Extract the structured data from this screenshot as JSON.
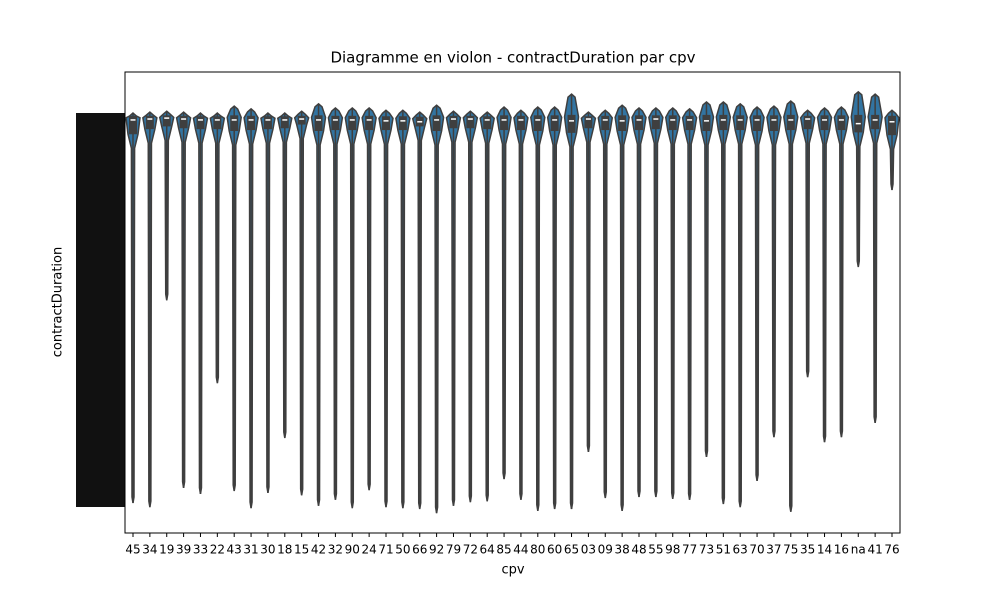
{
  "chart_data": {
    "type": "violin",
    "title": "Diagramme en violon - contractDuration par cpv",
    "x_label": "cpv",
    "y_label": "contractDuration",
    "categories": [
      "45",
      "34",
      "19",
      "39",
      "33",
      "22",
      "43",
      "31",
      "30",
      "18",
      "15",
      "42",
      "32",
      "90",
      "24",
      "71",
      "50",
      "66",
      "92",
      "79",
      "72",
      "64",
      "85",
      "44",
      "80",
      "60",
      "65",
      "03",
      "09",
      "38",
      "48",
      "55",
      "98",
      "77",
      "73",
      "51",
      "63",
      "70",
      "37",
      "75",
      "35",
      "14",
      "16",
      "na",
      "41",
      "76"
    ],
    "max": [
      91.1,
      91.3,
      91.5,
      91.3,
      91.1,
      91.1,
      92.6,
      92.0,
      91.1,
      91.1,
      91.5,
      93.1,
      92.2,
      92.2,
      92.2,
      91.7,
      91.7,
      91.3,
      92.8,
      91.5,
      91.5,
      91.3,
      92.4,
      91.7,
      92.4,
      92.4,
      95.2,
      91.3,
      91.7,
      92.8,
      92.2,
      92.2,
      92.2,
      92.0,
      93.5,
      93.5,
      93.1,
      92.4,
      92.6,
      93.7,
      91.7,
      92.2,
      92.4,
      95.7,
      95.2,
      91.7
    ],
    "q3": [
      90.5,
      90.5,
      90.6,
      90.5,
      90.4,
      90.4,
      90.6,
      90.5,
      90.4,
      90.4,
      90.5,
      90.6,
      90.5,
      90.5,
      90.5,
      90.4,
      90.4,
      90.3,
      90.6,
      90.5,
      90.5,
      90.4,
      90.6,
      90.5,
      90.6,
      90.6,
      90.7,
      90.4,
      90.5,
      90.6,
      90.6,
      90.6,
      90.6,
      90.5,
      90.7,
      90.7,
      90.6,
      90.6,
      90.6,
      90.7,
      90.5,
      90.6,
      90.6,
      90.7,
      90.7,
      90.5
    ],
    "median": [
      89.6,
      89.8,
      90.0,
      89.8,
      89.6,
      89.6,
      89.6,
      89.6,
      89.6,
      89.6,
      89.8,
      89.6,
      89.6,
      89.6,
      89.6,
      89.4,
      89.4,
      89.2,
      89.6,
      89.8,
      89.8,
      89.6,
      89.6,
      89.6,
      89.6,
      89.6,
      89.4,
      89.8,
      89.6,
      89.4,
      89.6,
      89.8,
      89.6,
      89.6,
      89.4,
      89.6,
      89.6,
      89.6,
      89.6,
      89.6,
      89.8,
      89.6,
      89.6,
      88.8,
      89.6,
      89.2
    ],
    "q1": [
      86.5,
      87.6,
      88.2,
      87.8,
      87.6,
      87.6,
      87.2,
      87.4,
      87.6,
      87.8,
      88.6,
      87.2,
      87.4,
      87.4,
      87.4,
      87.4,
      87.4,
      88.2,
      87.2,
      87.8,
      87.8,
      87.6,
      87.4,
      87.4,
      87.2,
      87.2,
      86.8,
      87.8,
      87.4,
      87.2,
      87.4,
      87.6,
      87.4,
      87.4,
      87.2,
      87.4,
      87.4,
      87.2,
      87.2,
      87.4,
      87.6,
      87.4,
      87.4,
      86.9,
      87.6,
      86.3
    ],
    "min": [
      6.5,
      5.6,
      50.5,
      9.8,
      8.5,
      32.5,
      9.1,
      5.4,
      8.7,
      20.6,
      8.2,
      5.9,
      7.2,
      5.4,
      9.3,
      5.6,
      5.4,
      5.2,
      4.3,
      5.9,
      6.7,
      6.9,
      11.7,
      7.2,
      4.8,
      5.2,
      5.2,
      17.6,
      7.6,
      4.8,
      7.8,
      7.8,
      7.4,
      7.2,
      16.5,
      6.3,
      5.6,
      11.3,
      20.8,
      4.6,
      33.8,
      19.7,
      20.8,
      57.7,
      23.9,
      74.4
    ],
    "color": "#3274a1",
    "ylim": [
      0,
      100
    ]
  }
}
